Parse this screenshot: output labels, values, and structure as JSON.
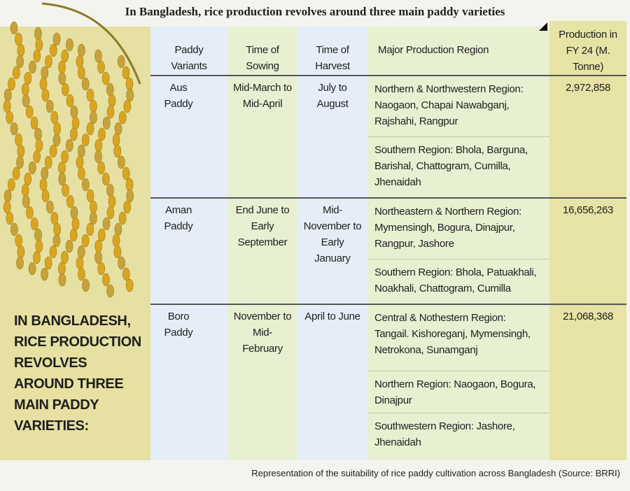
{
  "header": {
    "title": "In Bangladesh, rice production revolves around three main paddy varieties"
  },
  "side_text": "IN BANGLADESH, RICE PRODUCTION REVOLVES AROUND THREE MAIN PADDY VARIETIES:",
  "table": {
    "columns": [
      "Paddy Variants",
      "Time of Sowing",
      "Time of Harvest",
      "Major Production Region",
      "Production in FY 24 (M. Tonne)"
    ],
    "rows": [
      {
        "variant": "Aus Paddy",
        "sowing": "Mid-March to Mid-April",
        "harvest": "July to August",
        "regions": [
          "Northern & Northwestern Region: Naogaon, Chapai Nawabganj, Rajshahi, Rangpur",
          "Southern Region: Bhola, Barguna, Barishal, Chattogram, Cumilla, Jhenaidah"
        ],
        "production": "2,972,858"
      },
      {
        "variant": "Aman Paddy",
        "sowing": "End June to Early September",
        "harvest": "Mid-November to Early January",
        "regions": [
          "Northeastern & Northern Region: Mymensingh, Bogura, Dinajpur, Rangpur, Jashore",
          "Southern Region: Bhola, Patuakhali, Noakhali, Chattogram, Cumilla"
        ],
        "production": "16,656,263"
      },
      {
        "variant": "Boro Paddy",
        "sowing": "November to Mid-February",
        "harvest": "April to June",
        "regions": [
          "Central & Nothestern Region: Tangail. Kishoreganj, Mymensingh, Netrokona, Sunamganj",
          "Northern Region: Naogaon, Bogura, Dinajpur",
          "Southwestern Region: Jashore, Jhenaidah"
        ],
        "production": "21,068,368"
      }
    ]
  },
  "caption": "Representation of the suitability of rice paddy cultivation across Bangladesh (Source: BRRI)"
}
